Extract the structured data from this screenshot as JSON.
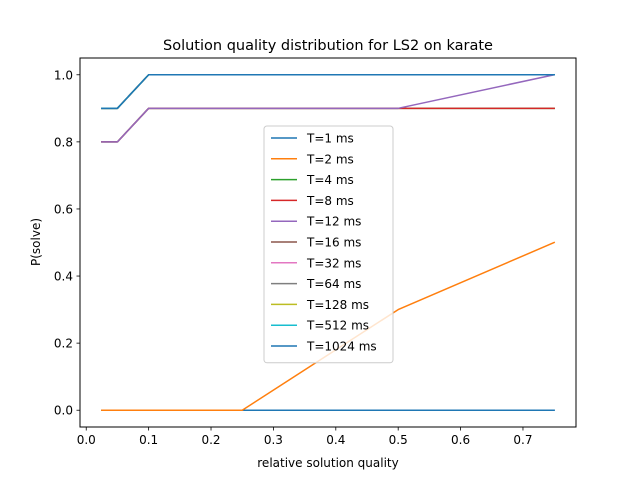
{
  "chart_data": {
    "type": "line",
    "title": "Solution quality distribution for LS2 on karate",
    "xlabel": "relative solution quality",
    "ylabel": "P(solve)",
    "xlim": [
      -0.01,
      0.785
    ],
    "ylim": [
      -0.05,
      1.05
    ],
    "xticks": [
      0.0,
      0.1,
      0.2,
      0.3,
      0.4,
      0.5,
      0.6,
      0.7
    ],
    "xtick_labels": [
      "0.0",
      "0.1",
      "0.2",
      "0.3",
      "0.4",
      "0.5",
      "0.6",
      "0.7"
    ],
    "yticks": [
      0.0,
      0.2,
      0.4,
      0.6,
      0.8,
      1.0
    ],
    "ytick_labels": [
      "0.0",
      "0.2",
      "0.4",
      "0.6",
      "0.8",
      "1.0"
    ],
    "grid": false,
    "legend_position": "center",
    "series": [
      {
        "name": "T=1 ms",
        "color": "#1f77b4",
        "x": [
          0.025,
          0.05,
          0.1,
          0.25,
          0.5,
          0.75
        ],
        "y": [
          0.0,
          0.0,
          0.0,
          0.0,
          0.0,
          0.0
        ]
      },
      {
        "name": "T=2 ms",
        "color": "#ff7f0e",
        "x": [
          0.025,
          0.05,
          0.1,
          0.25,
          0.5,
          0.75
        ],
        "y": [
          0.0,
          0.0,
          0.0,
          0.0,
          0.3,
          0.5
        ]
      },
      {
        "name": "T=4 ms",
        "color": "#2ca02c",
        "x": [
          0.025,
          0.05,
          0.1,
          0.25,
          0.5,
          0.75
        ],
        "y": [
          0.8,
          0.8,
          0.9,
          0.9,
          0.9,
          0.9
        ]
      },
      {
        "name": "T=8 ms",
        "color": "#d62728",
        "x": [
          0.025,
          0.05,
          0.1,
          0.25,
          0.5,
          0.75
        ],
        "y": [
          0.8,
          0.8,
          0.9,
          0.9,
          0.9,
          0.9
        ]
      },
      {
        "name": "T=12 ms",
        "color": "#9467bd",
        "x": [
          0.025,
          0.05,
          0.1,
          0.25,
          0.5,
          0.75
        ],
        "y": [
          0.8,
          0.8,
          0.9,
          0.9,
          0.9,
          1.0
        ]
      },
      {
        "name": "T=16 ms",
        "color": "#8c564b",
        "x": [
          0.025,
          0.05,
          0.1,
          0.25,
          0.5,
          0.75
        ],
        "y": [
          0.9,
          0.9,
          1.0,
          1.0,
          1.0,
          1.0
        ]
      },
      {
        "name": "T=32 ms",
        "color": "#e377c2",
        "x": [
          0.025,
          0.05,
          0.1,
          0.25,
          0.5,
          0.75
        ],
        "y": [
          0.9,
          0.9,
          1.0,
          1.0,
          1.0,
          1.0
        ]
      },
      {
        "name": "T=64 ms",
        "color": "#7f7f7f",
        "x": [
          0.025,
          0.05,
          0.1,
          0.25,
          0.5,
          0.75
        ],
        "y": [
          0.9,
          0.9,
          1.0,
          1.0,
          1.0,
          1.0
        ]
      },
      {
        "name": "T=128 ms",
        "color": "#bcbd22",
        "x": [
          0.025,
          0.05,
          0.1,
          0.25,
          0.5,
          0.75
        ],
        "y": [
          0.9,
          0.9,
          1.0,
          1.0,
          1.0,
          1.0
        ]
      },
      {
        "name": "T=512 ms",
        "color": "#17becf",
        "x": [
          0.025,
          0.05,
          0.1,
          0.25,
          0.5,
          0.75
        ],
        "y": [
          0.9,
          0.9,
          1.0,
          1.0,
          1.0,
          1.0
        ]
      },
      {
        "name": "T=1024 ms",
        "color": "#1f77b4",
        "x": [
          0.025,
          0.05,
          0.1,
          0.25,
          0.5,
          0.75
        ],
        "y": [
          0.9,
          0.9,
          1.0,
          1.0,
          1.0,
          1.0
        ]
      }
    ]
  }
}
